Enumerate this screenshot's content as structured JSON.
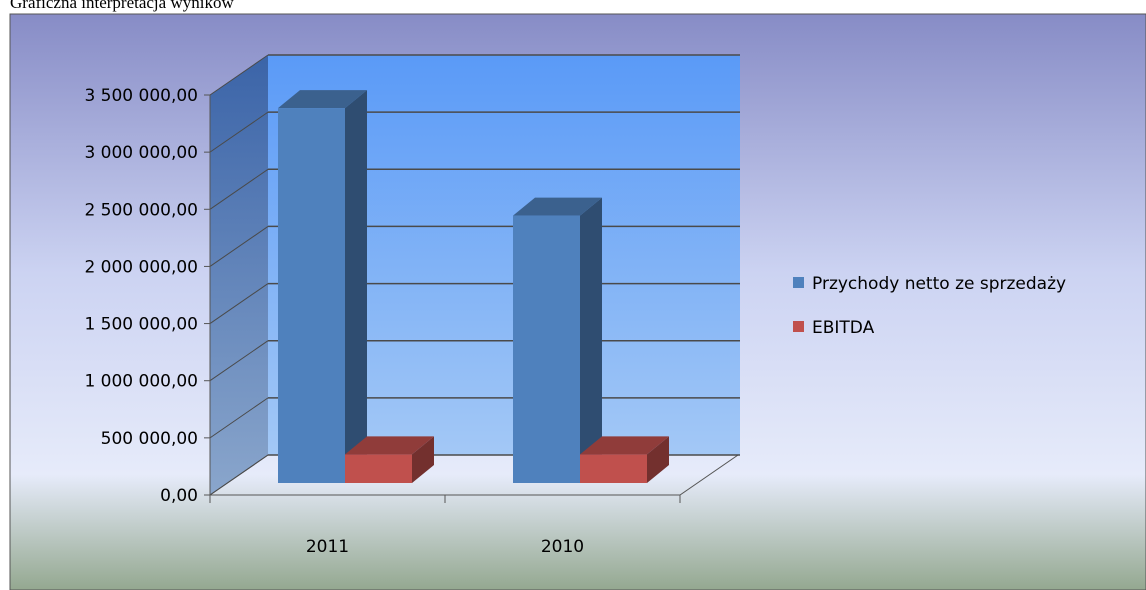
{
  "chart_data": {
    "type": "bar3d",
    "caption": "Graficzna interpretacja wyników",
    "categories": [
      "2011",
      "2010"
    ],
    "series": [
      {
        "name": "Przychody netto ze sprzedaży",
        "color": "#4f81bd",
        "values": [
          3280000,
          2340000
        ]
      },
      {
        "name": "EBITDA",
        "color": "#c0504d",
        "values": [
          250000,
          250000
        ]
      }
    ],
    "ylim": [
      0,
      3500000
    ],
    "yticks": [
      {
        "value": 0,
        "label": "0,00"
      },
      {
        "value": 500000,
        "label": "500 000,00"
      },
      {
        "value": 1000000,
        "label": "1 000 000,00"
      },
      {
        "value": 1500000,
        "label": "1 500 000,00"
      },
      {
        "value": 2000000,
        "label": "2 000 000,00"
      },
      {
        "value": 2500000,
        "label": "2 500 000,00"
      },
      {
        "value": 3000000,
        "label": "3 000 000,00"
      },
      {
        "value": 3500000,
        "label": "3 500 000,00"
      }
    ],
    "grid": true,
    "legend": "right"
  }
}
